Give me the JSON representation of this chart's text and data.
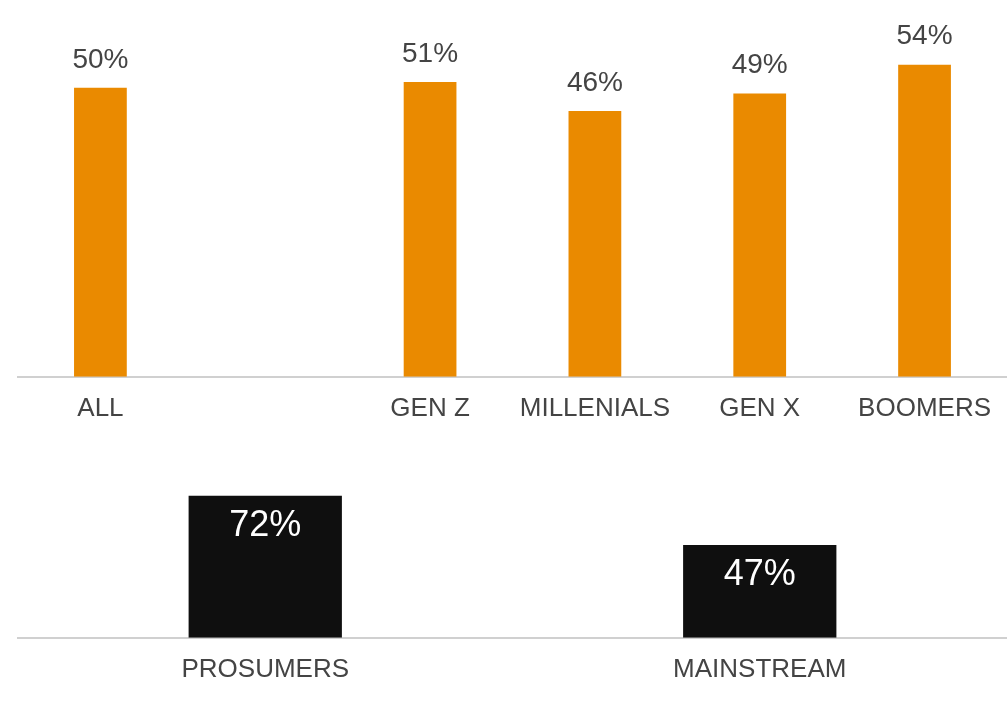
{
  "chart_data": [
    {
      "type": "bar",
      "categories": [
        "ALL",
        null,
        "GEN Z",
        "MILLENIALS",
        "GEN X",
        "BOOMERS"
      ],
      "values": [
        50,
        null,
        51,
        46,
        49,
        54
      ],
      "color": "#ea8a00",
      "value_labels": [
        "50%",
        null,
        "51%",
        "46%",
        "49%",
        "54%"
      ]
    },
    {
      "type": "bar",
      "categories": [
        "PROSUMERS",
        "MAINSTREAM"
      ],
      "values": [
        72,
        47
      ],
      "color": "#0f0f0f",
      "value_labels": [
        "72%",
        "47%"
      ]
    }
  ]
}
